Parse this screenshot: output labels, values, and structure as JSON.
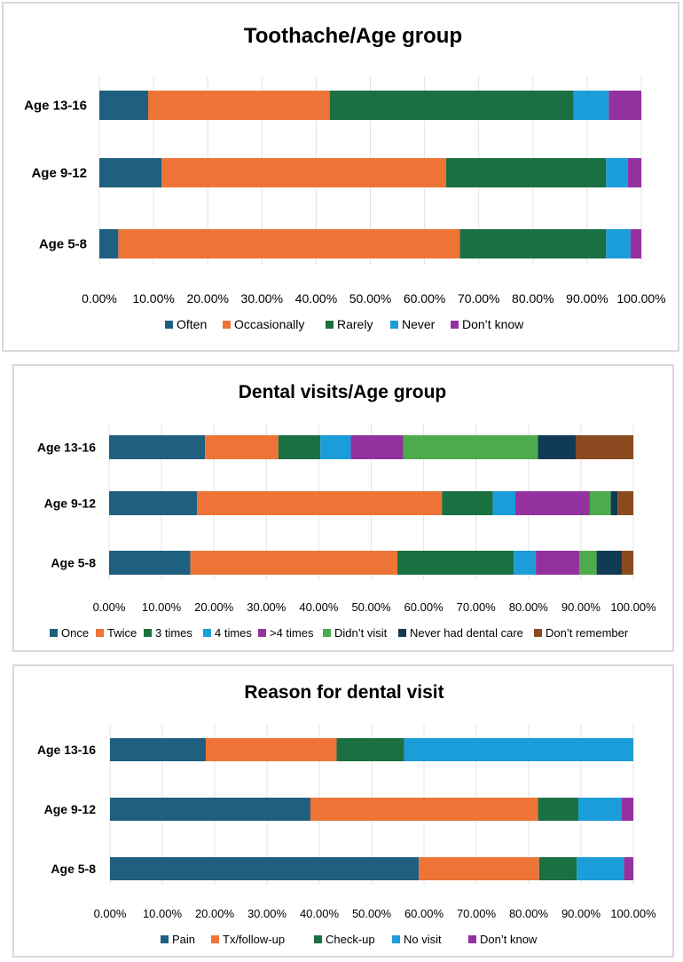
{
  "chart_data": [
    {
      "type": "bar",
      "orientation": "horizontal",
      "stacked": "percent",
      "title": "Toothache/Age group",
      "categories": [
        "Age 13-16",
        "Age 9-12",
        "Age 5-8"
      ],
      "series": [
        {
          "name": "Often",
          "color": "#1f5f7f",
          "values": [
            9.0,
            11.5,
            3.5
          ]
        },
        {
          "name": "Occasionally",
          "color": "#ed7436",
          "values": [
            33.5,
            52.5,
            63.0
          ]
        },
        {
          "name": "Rarely",
          "color": "#1a7040",
          "values": [
            45.0,
            29.5,
            27.0
          ]
        },
        {
          "name": "Never",
          "color": "#1b9dd9",
          "values": [
            6.5,
            4.0,
            4.5
          ]
        },
        {
          "name": "Don't know",
          "color": "#93329e",
          "values": [
            6.0,
            2.5,
            2.0
          ]
        }
      ],
      "xlim": [
        0,
        100
      ],
      "x_ticks": [
        "0.00%",
        "10.00%",
        "20.00%",
        "30.00%",
        "40.00%",
        "50.00%",
        "60.00%",
        "70.00%",
        "80.00%",
        "90.00%",
        "100.00%"
      ],
      "legend_position": "bottom",
      "legend_label": "Don’t know"
    },
    {
      "type": "bar",
      "orientation": "horizontal",
      "stacked": "percent",
      "title": "Dental visits/Age group",
      "categories": [
        "Age 13-16",
        "Age 9-12",
        "Age 5-8"
      ],
      "series": [
        {
          "name": "Once",
          "color": "#1f5f7f",
          "values": [
            18.3,
            16.8,
            15.5
          ]
        },
        {
          "name": "Twice",
          "color": "#ed7436",
          "values": [
            14.0,
            46.7,
            39.5
          ]
        },
        {
          "name": "3 times",
          "color": "#1a7040",
          "values": [
            8.0,
            9.7,
            22.2
          ]
        },
        {
          "name": "4 times",
          "color": "#1b9dd9",
          "values": [
            5.8,
            4.3,
            4.2
          ]
        },
        {
          "name": ">4 times",
          "color": "#93329e",
          "values": [
            10.0,
            14.2,
            8.3
          ]
        },
        {
          "name": "Didn’t visit",
          "color": "#4cab4a",
          "values": [
            25.7,
            4.0,
            3.3
          ]
        },
        {
          "name": "Never had dental care",
          "color": "#113a55",
          "values": [
            7.2,
            1.3,
            4.8
          ]
        },
        {
          "name": "Don’t remember",
          "color": "#8b4a20",
          "values": [
            11.0,
            3.0,
            2.2
          ]
        }
      ],
      "xlim": [
        0,
        100
      ],
      "x_ticks": [
        "0.00%",
        "10.00%",
        "20.00%",
        "30.00%",
        "40.00%",
        "50.00%",
        "60.00%",
        "70.00%",
        "80.00%",
        "90.00%",
        "100.00%"
      ],
      "legend_position": "bottom"
    },
    {
      "type": "bar",
      "orientation": "horizontal",
      "stacked": "percent",
      "title": "Reason for dental visit",
      "categories": [
        "Age 13-16",
        "Age 9-12",
        "Age 5-8"
      ],
      "series": [
        {
          "name": "Pain",
          "color": "#1f5f7f",
          "values": [
            18.3,
            38.3,
            59.0
          ]
        },
        {
          "name": "Tx/follow-up",
          "color": "#ed7436",
          "values": [
            25.0,
            43.5,
            23.0
          ]
        },
        {
          "name": "Check-up",
          "color": "#1a7040",
          "values": [
            12.9,
            7.7,
            7.2
          ]
        },
        {
          "name": "No visit",
          "color": "#1b9dd9",
          "values": [
            43.8,
            8.3,
            9.0
          ]
        },
        {
          "name": "Don’t know",
          "color": "#93329e",
          "values": [
            0,
            2.2,
            1.8
          ]
        }
      ],
      "xlim": [
        0,
        100
      ],
      "x_ticks": [
        "0.00%",
        "10.00%",
        "20.00%",
        "30.00%",
        "40.00%",
        "50.00%",
        "60.00%",
        "70.00%",
        "80.00%",
        "90.00%",
        "100.00%"
      ],
      "legend_position": "bottom"
    }
  ]
}
